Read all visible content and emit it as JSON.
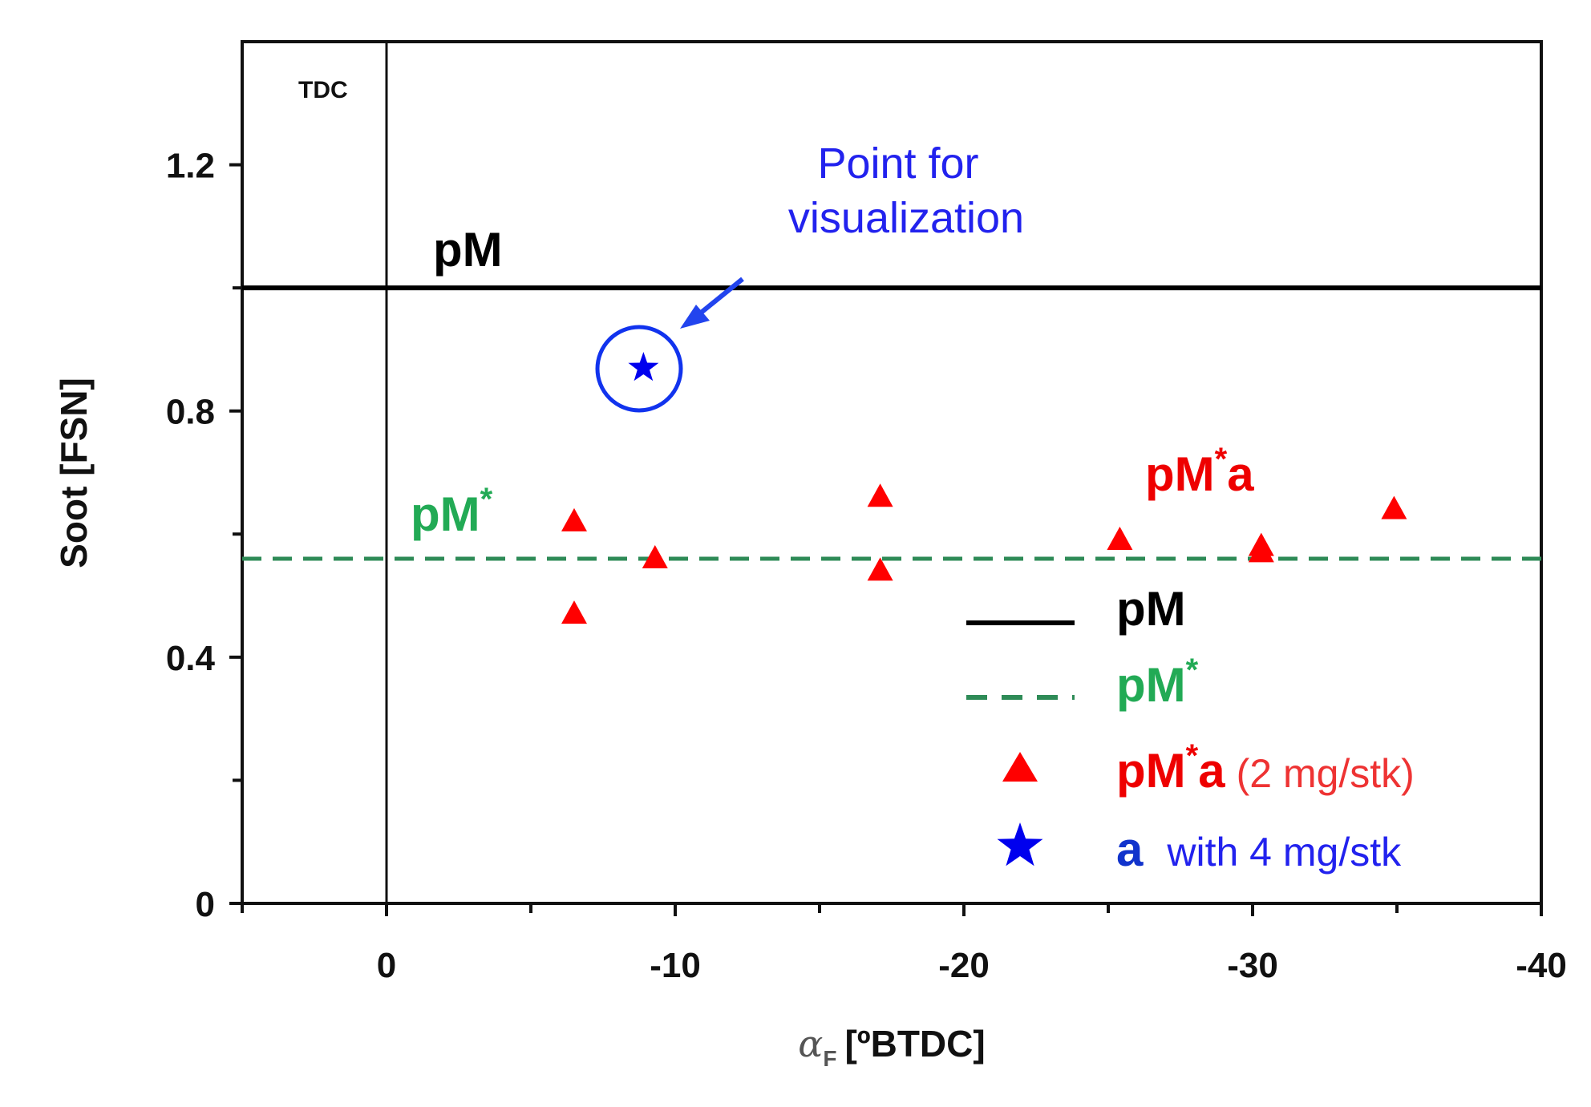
{
  "chart_data": {
    "type": "scatter",
    "title": "",
    "xlabel_symbol": "α",
    "xlabel_subscript": "F",
    "xlabel_unit": "[ºBTDC]",
    "ylabel": "Soot [FSN]",
    "xlim": [
      5,
      -40
    ],
    "ylim": [
      0,
      1.4
    ],
    "x_ticks": [
      0,
      -10,
      -20,
      -30,
      -40
    ],
    "x_tick_labels": [
      "0",
      "-10",
      "-20",
      "-30",
      "-40"
    ],
    "x_minor_ticks": [
      5,
      -5,
      -15,
      -25,
      -35
    ],
    "y_ticks": [
      0,
      0.4,
      0.8,
      1.2
    ],
    "y_tick_labels": [
      "0",
      "0.4",
      "0.8",
      "1.2"
    ],
    "y_minor_ticks": [
      0.2,
      0.6,
      1.0
    ],
    "grid": false,
    "series": [
      {
        "name": "pM",
        "kind": "hline",
        "y": 1.0,
        "color": "#000000",
        "style": "solid"
      },
      {
        "name": "pM*",
        "kind": "hline",
        "y": 0.56,
        "color": "#2e8b57",
        "style": "dashed"
      },
      {
        "name": "pM*a",
        "kind": "scatter",
        "marker": "triangle",
        "color": "#ff0000",
        "points": [
          {
            "x": -6.5,
            "y": 0.62
          },
          {
            "x": -6.5,
            "y": 0.47
          },
          {
            "x": -9.3,
            "y": 0.56
          },
          {
            "x": -17.1,
            "y": 0.66
          },
          {
            "x": -17.1,
            "y": 0.54
          },
          {
            "x": -25.4,
            "y": 0.59
          },
          {
            "x": -30.3,
            "y": 0.58
          },
          {
            "x": -30.3,
            "y": 0.57
          },
          {
            "x": -34.9,
            "y": 0.64
          }
        ]
      },
      {
        "name": "a",
        "kind": "scatter",
        "marker": "star",
        "color": "#0000ee",
        "points": [
          {
            "x": -8.9,
            "y": 0.87
          }
        ]
      }
    ],
    "vline": {
      "x": 0,
      "label": "TDC"
    },
    "annotations": {
      "pM_line_label": "pM",
      "pMstar_line_label_base": "pM",
      "pMstar_line_label_sup": "*",
      "pMstar_a_label_base": "pM",
      "pMstar_a_label_sup": "*",
      "pMstar_a_label_tail": "a",
      "visualization_line1": "Point for",
      "visualization_line2": "visualization"
    },
    "legend": {
      "position": "bottom-right",
      "entries": [
        {
          "base": "pM",
          "sup": "",
          "tail": "",
          "sub": "",
          "color": "#000000",
          "sub_color": ""
        },
        {
          "base": "pM",
          "sup": "*",
          "tail": "",
          "sub": "",
          "color": "#22aa55",
          "sub_color": ""
        },
        {
          "base": "pM",
          "sup": "*",
          "tail": "a",
          "sub": "(2 mg/stk)",
          "color": "#ee0000",
          "sub_color": "#ee3333"
        },
        {
          "base": "a",
          "sup": "",
          "tail": "",
          "sub": "with 4 mg/stk",
          "color": "#1133cc",
          "sub_color": "#2222ee"
        }
      ]
    },
    "colors": {
      "black": "#000000",
      "green_line": "#2e8b57",
      "green_text": "#22aa55",
      "red": "#ff0000",
      "blue": "#0000ee"
    }
  }
}
